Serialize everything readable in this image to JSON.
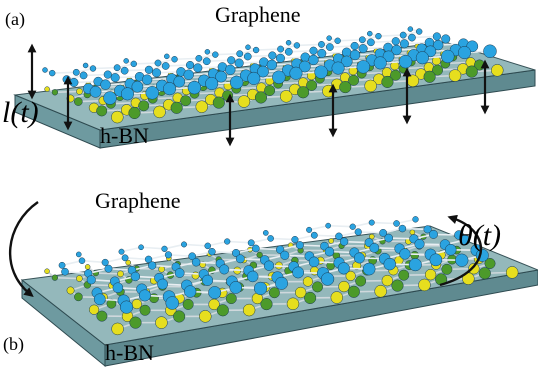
{
  "panels": [
    {
      "label": "(a)",
      "top_label": "Graphene",
      "motion_label": "l(t)",
      "substrate_label": "h-BN"
    },
    {
      "label": "(b)",
      "top_label": "Graphene",
      "motion_label": "θ(t)",
      "substrate_label": "h-BN"
    }
  ]
}
